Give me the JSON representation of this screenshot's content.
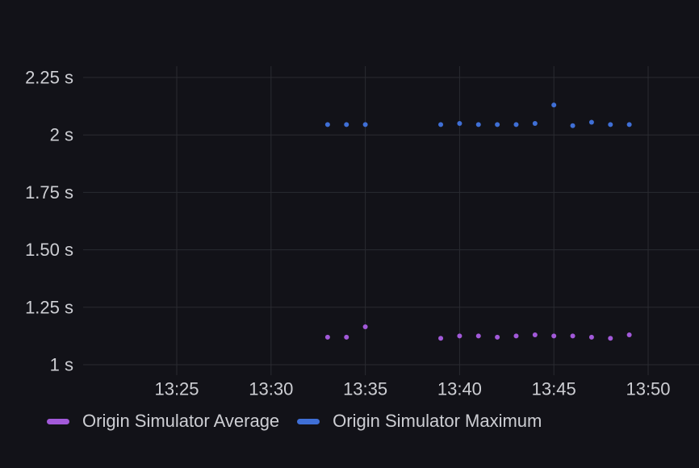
{
  "colors": {
    "background": "#121218",
    "grid": "#2a2b31",
    "text": "#cdced3",
    "average": "#a259d9",
    "maximum": "#3f6fd6"
  },
  "legend": {
    "items": [
      {
        "label": "Origin Simulator Average",
        "color": "#a259d9"
      },
      {
        "label": "Origin Simulator Maximum",
        "color": "#3f6fd6"
      }
    ]
  },
  "chart_data": {
    "type": "scatter",
    "title": "",
    "xlabel": "",
    "ylabel": "",
    "grid": true,
    "legend_position": "bottom-left",
    "xlim": [
      "13:20",
      "13:51"
    ],
    "ylim": [
      1,
      2.25
    ],
    "x_ticks": [
      "13:25",
      "13:30",
      "13:35",
      "13:40",
      "13:45",
      "13:50"
    ],
    "y_ticks": [
      {
        "value": 1,
        "label": "1 s"
      },
      {
        "value": 1.25,
        "label": "1.25 s"
      },
      {
        "value": 1.5,
        "label": "1.50 s"
      },
      {
        "value": 1.75,
        "label": "1.75 s"
      },
      {
        "value": 2,
        "label": "2 s"
      },
      {
        "value": 2.25,
        "label": "2.25 s"
      }
    ],
    "series": [
      {
        "name": "Origin Simulator Average",
        "color": "#a259d9",
        "points": [
          {
            "x": "13:33",
            "y": 1.12
          },
          {
            "x": "13:34",
            "y": 1.12
          },
          {
            "x": "13:35",
            "y": 1.165
          },
          {
            "x": "13:39",
            "y": 1.115
          },
          {
            "x": "13:40",
            "y": 1.125
          },
          {
            "x": "13:41",
            "y": 1.125
          },
          {
            "x": "13:42",
            "y": 1.12
          },
          {
            "x": "13:43",
            "y": 1.125
          },
          {
            "x": "13:44",
            "y": 1.13
          },
          {
            "x": "13:45",
            "y": 1.125
          },
          {
            "x": "13:46",
            "y": 1.125
          },
          {
            "x": "13:47",
            "y": 1.12
          },
          {
            "x": "13:48",
            "y": 1.115
          },
          {
            "x": "13:49",
            "y": 1.13
          }
        ]
      },
      {
        "name": "Origin Simulator Maximum",
        "color": "#3f6fd6",
        "points": [
          {
            "x": "13:33",
            "y": 2.045
          },
          {
            "x": "13:34",
            "y": 2.045
          },
          {
            "x": "13:35",
            "y": 2.045
          },
          {
            "x": "13:39",
            "y": 2.045
          },
          {
            "x": "13:40",
            "y": 2.05
          },
          {
            "x": "13:41",
            "y": 2.045
          },
          {
            "x": "13:42",
            "y": 2.045
          },
          {
            "x": "13:43",
            "y": 2.045
          },
          {
            "x": "13:44",
            "y": 2.05
          },
          {
            "x": "13:45",
            "y": 2.13
          },
          {
            "x": "13:46",
            "y": 2.04
          },
          {
            "x": "13:47",
            "y": 2.055
          },
          {
            "x": "13:48",
            "y": 2.045
          },
          {
            "x": "13:49",
            "y": 2.045
          }
        ]
      }
    ]
  }
}
